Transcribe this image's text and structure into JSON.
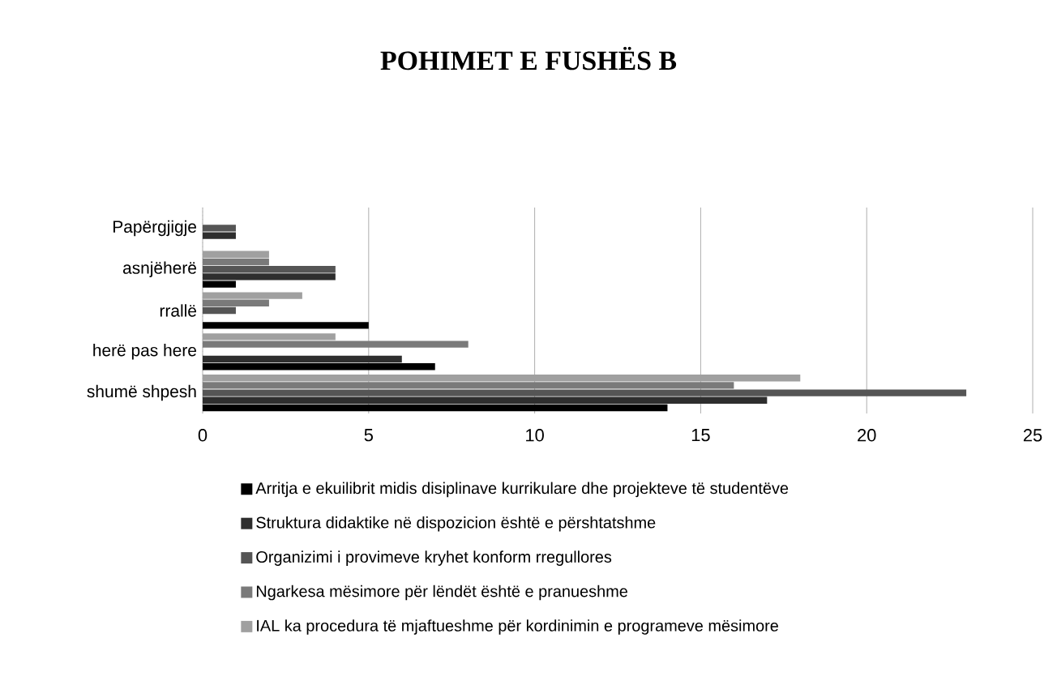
{
  "chart_data": {
    "type": "bar",
    "orientation": "horizontal",
    "title": "POHIMET E FUSHËS B",
    "categories": [
      "Papërgjigje",
      "asnjëherë",
      "rrallë",
      "herë pas here",
      "shumë shpesh"
    ],
    "series": [
      {
        "name": "Arritja e ekuilibrit midis disiplinave kurrikulare dhe projekteve të studentëve",
        "color": "#000000",
        "values": [
          0,
          1,
          5,
          7,
          14
        ]
      },
      {
        "name": "Struktura didaktike në dispozicion është e përshtatshme",
        "color": "#2e2e2e",
        "values": [
          1,
          4,
          0,
          6,
          17
        ]
      },
      {
        "name": "Organizimi i provimeve kryhet konform rregullores",
        "color": "#555555",
        "values": [
          1,
          4,
          1,
          0,
          23
        ]
      },
      {
        "name": "Ngarkesa mësimore për lëndët është e pranueshme",
        "color": "#7a7a7a",
        "values": [
          0,
          2,
          2,
          8,
          16
        ]
      },
      {
        "name": "IAL ka procedura të mjaftueshme për kordinimin e programeve mësimore",
        "color": "#a0a0a0",
        "values": [
          0,
          2,
          3,
          4,
          18
        ]
      }
    ],
    "xlim": [
      0,
      25
    ],
    "xticks": [
      0,
      5,
      10,
      15,
      20,
      25
    ],
    "grid": "x",
    "legend": "bottom"
  }
}
